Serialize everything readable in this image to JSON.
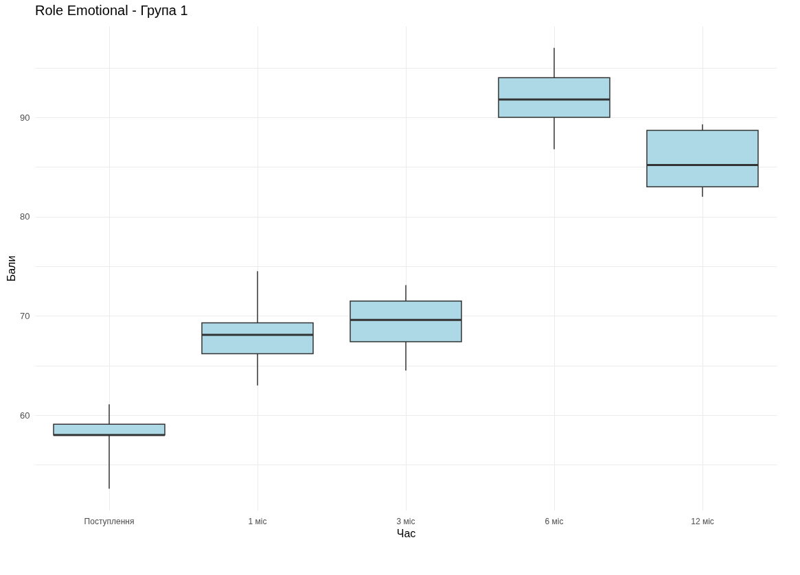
{
  "chart_data": {
    "type": "box",
    "title": "Role Emotional - Група 1",
    "xlabel": "Час",
    "ylabel": "Бали",
    "categories": [
      "Поступлення",
      "1 міс",
      "3 міс",
      "6 міс",
      "12 міс"
    ],
    "series": [
      {
        "color": "#add8e6",
        "boxes": [
          {
            "low": 52.6,
            "q1": 58.0,
            "median": 58.0,
            "q3": 59.1,
            "high": 61.1
          },
          {
            "low": 63.0,
            "q1": 66.2,
            "median": 68.1,
            "q3": 69.3,
            "high": 74.5
          },
          {
            "low": 64.5,
            "q1": 67.4,
            "median": 69.6,
            "q3": 71.5,
            "high": 73.1
          },
          {
            "low": 86.8,
            "q1": 90.0,
            "median": 91.8,
            "q3": 94.0,
            "high": 97.0
          },
          {
            "low": 82.0,
            "q1": 83.0,
            "median": 85.2,
            "q3": 88.7,
            "high": 89.3
          }
        ]
      }
    ],
    "ylim": [
      50.4,
      99.2
    ],
    "yticks": [
      {
        "value": 55,
        "label": null
      },
      60,
      {
        "value": 65,
        "label": null
      },
      70,
      {
        "value": 75,
        "label": null
      },
      80,
      {
        "value": 85,
        "label": null
      },
      90,
      {
        "value": 95,
        "label": null
      }
    ],
    "grid": true
  }
}
